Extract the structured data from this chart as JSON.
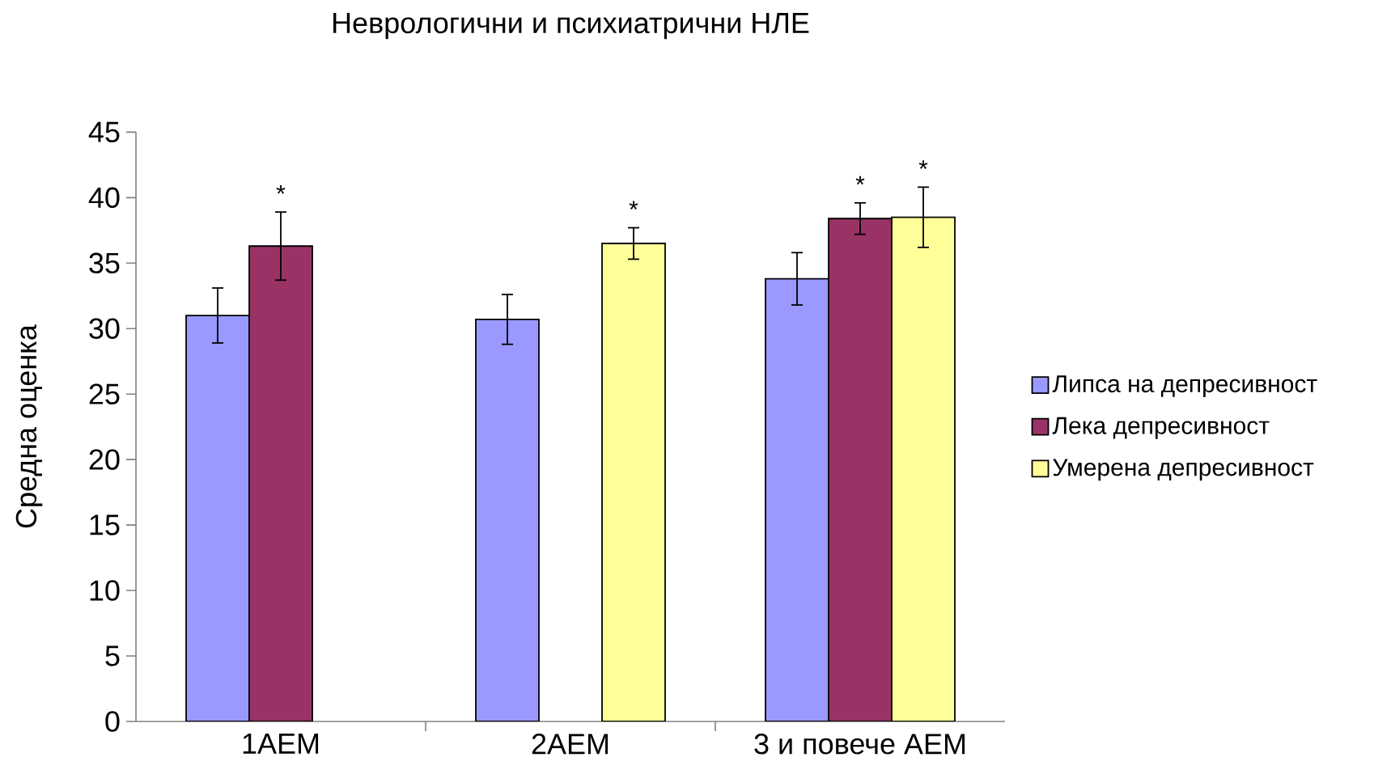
{
  "chart_data": {
    "type": "bar",
    "title": "Неврологични и психиатрични НЛЕ",
    "ylabel": "Средна оценка",
    "categories": [
      "1АЕМ",
      "2АЕМ",
      "3 и повече АЕМ"
    ],
    "series": [
      {
        "name": "Липса на депресивност",
        "color": "#9999ff",
        "values": [
          31.0,
          30.7,
          33.8
        ],
        "errors": [
          2.1,
          1.9,
          2.0
        ]
      },
      {
        "name": "Лека депресивност",
        "color": "#993366",
        "values": [
          36.3,
          null,
          38.4
        ],
        "errors": [
          2.6,
          null,
          1.2
        ],
        "value_labels": [
          "*",
          null,
          "*"
        ]
      },
      {
        "name": "Умерена депресивност",
        "color": "#ffff99",
        "values": [
          null,
          36.5,
          38.5
        ],
        "errors": [
          null,
          1.2,
          2.3
        ],
        "value_labels": [
          null,
          "*",
          "*"
        ]
      }
    ],
    "ylim": [
      0,
      45
    ],
    "yticks": [
      0,
      5,
      10,
      15,
      20,
      25,
      30,
      35,
      40,
      45
    ],
    "legend": "right"
  }
}
